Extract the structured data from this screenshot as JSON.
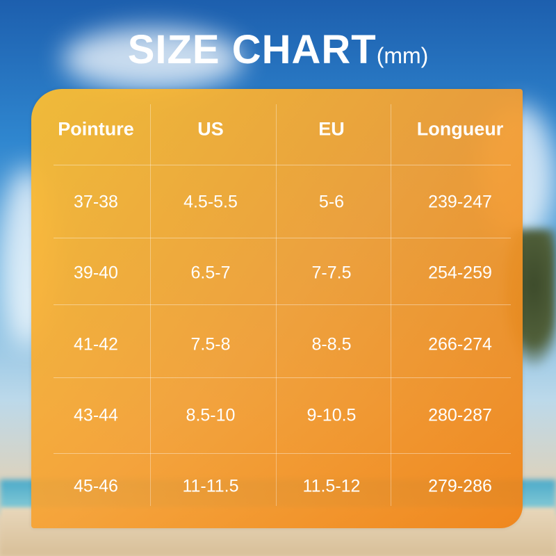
{
  "title": {
    "main": "SIZE CHART",
    "unit": "(mm)"
  },
  "chart_data": {
    "type": "table",
    "columns": [
      "Pointure",
      "US",
      "EU",
      "Longueur"
    ],
    "rows": [
      [
        "37-38",
        "4.5-5.5",
        "5-6",
        "239-247"
      ],
      [
        "39-40",
        "6.5-7",
        "7-7.5",
        "254-259"
      ],
      [
        "41-42",
        "7.5-8",
        "8-8.5",
        "266-274"
      ],
      [
        "43-44",
        "8.5-10",
        "9-10.5",
        "280-287"
      ],
      [
        "45-46",
        "11-11.5",
        "11.5-12",
        "279-286"
      ]
    ]
  },
  "colors": {
    "panel": "#f5a232",
    "text": "#ffffff",
    "sky": "#2f86cf"
  }
}
